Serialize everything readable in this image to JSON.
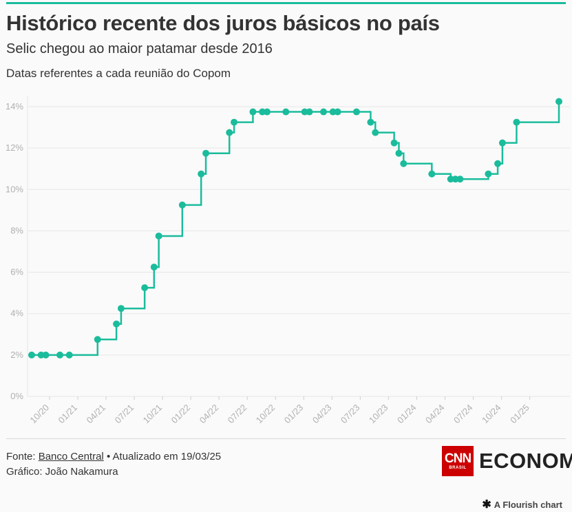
{
  "header": {
    "title": "Histórico recente dos juros básicos no país",
    "subtitle": "Selic chegou ao maior patamar desde 2016",
    "note": "Datas referentes a cada reunião do Copom"
  },
  "colors": {
    "accent": "#1abc9c",
    "grid": "#e6e6e6",
    "tick_text": "#b0b0b0",
    "brand_red": "#cc0000"
  },
  "chart_data": {
    "type": "line",
    "step": true,
    "x_unit": "months since 01/2020",
    "y_unit": "%",
    "ylim": [
      0,
      14.5
    ],
    "yticks": [
      0,
      2,
      4,
      6,
      8,
      10,
      12,
      14
    ],
    "ytick_labels": [
      "0%",
      "2%",
      "4%",
      "6%",
      "8%",
      "10%",
      "12%",
      "14%"
    ],
    "xticks": [
      {
        "x": 9.5,
        "label": "10/20"
      },
      {
        "x": 12.5,
        "label": "01/21"
      },
      {
        "x": 15.5,
        "label": "04/21"
      },
      {
        "x": 18.5,
        "label": "07/21"
      },
      {
        "x": 21.5,
        "label": "10/21"
      },
      {
        "x": 24.5,
        "label": "01/22"
      },
      {
        "x": 27.5,
        "label": "04/22"
      },
      {
        "x": 30.5,
        "label": "07/22"
      },
      {
        "x": 33.5,
        "label": "10/22"
      },
      {
        "x": 36.5,
        "label": "01/23"
      },
      {
        "x": 39.5,
        "label": "04/23"
      },
      {
        "x": 42.5,
        "label": "07/23"
      },
      {
        "x": 45.5,
        "label": "10/23"
      },
      {
        "x": 48.5,
        "label": "01/24"
      },
      {
        "x": 51.5,
        "label": "04/24"
      },
      {
        "x": 54.5,
        "label": "07/24"
      },
      {
        "x": 57.5,
        "label": "10/24"
      },
      {
        "x": 60.5,
        "label": "01/25"
      }
    ],
    "xlim": [
      7.6,
      63.6
    ],
    "series": [
      {
        "points": [
          {
            "x": 7.6,
            "y": 2
          },
          {
            "x": 8.6,
            "y": 2
          },
          {
            "x": 9.1,
            "y": 2
          },
          {
            "x": 10.6,
            "y": 2
          },
          {
            "x": 11.6,
            "y": 2
          },
          {
            "x": 14.6,
            "y": 2.75
          },
          {
            "x": 16.6,
            "y": 3.5
          },
          {
            "x": 17.1,
            "y": 4.25
          },
          {
            "x": 19.6,
            "y": 5.25
          },
          {
            "x": 20.6,
            "y": 6.25
          },
          {
            "x": 21.1,
            "y": 7.75
          },
          {
            "x": 23.6,
            "y": 9.25
          },
          {
            "x": 25.6,
            "y": 10.75
          },
          {
            "x": 26.1,
            "y": 11.75
          },
          {
            "x": 28.6,
            "y": 12.75
          },
          {
            "x": 29.1,
            "y": 13.25
          },
          {
            "x": 31.1,
            "y": 13.75
          },
          {
            "x": 32.1,
            "y": 13.75
          },
          {
            "x": 32.6,
            "y": 13.75
          },
          {
            "x": 34.6,
            "y": 13.75
          },
          {
            "x": 36.6,
            "y": 13.75
          },
          {
            "x": 37.1,
            "y": 13.75
          },
          {
            "x": 38.6,
            "y": 13.75
          },
          {
            "x": 39.6,
            "y": 13.75
          },
          {
            "x": 40.1,
            "y": 13.75
          },
          {
            "x": 42.1,
            "y": 13.75
          },
          {
            "x": 43.6,
            "y": 13.25
          },
          {
            "x": 44.1,
            "y": 12.75
          },
          {
            "x": 46.1,
            "y": 12.25
          },
          {
            "x": 46.6,
            "y": 11.75
          },
          {
            "x": 47.1,
            "y": 11.25
          },
          {
            "x": 50.1,
            "y": 10.75
          },
          {
            "x": 52.1,
            "y": 10.5
          },
          {
            "x": 52.6,
            "y": 10.5
          },
          {
            "x": 53.1,
            "y": 10.5
          },
          {
            "x": 56.1,
            "y": 10.75
          },
          {
            "x": 57.1,
            "y": 11.25
          },
          {
            "x": 57.6,
            "y": 12.25
          },
          {
            "x": 59.1,
            "y": 13.25
          },
          {
            "x": 63.6,
            "y": 14.25
          }
        ]
      }
    ]
  },
  "footer": {
    "source_prefix": "Fonte:",
    "source_link": "Banco Central",
    "updated": "• Atualizado em 19/03/25",
    "credit": "Gráfico: João Nakamura"
  },
  "brand": {
    "cnn": "CNN",
    "brasil": "BRASIL",
    "economia": "ECONOMIA"
  },
  "flourish": {
    "label": "A Flourish chart"
  }
}
